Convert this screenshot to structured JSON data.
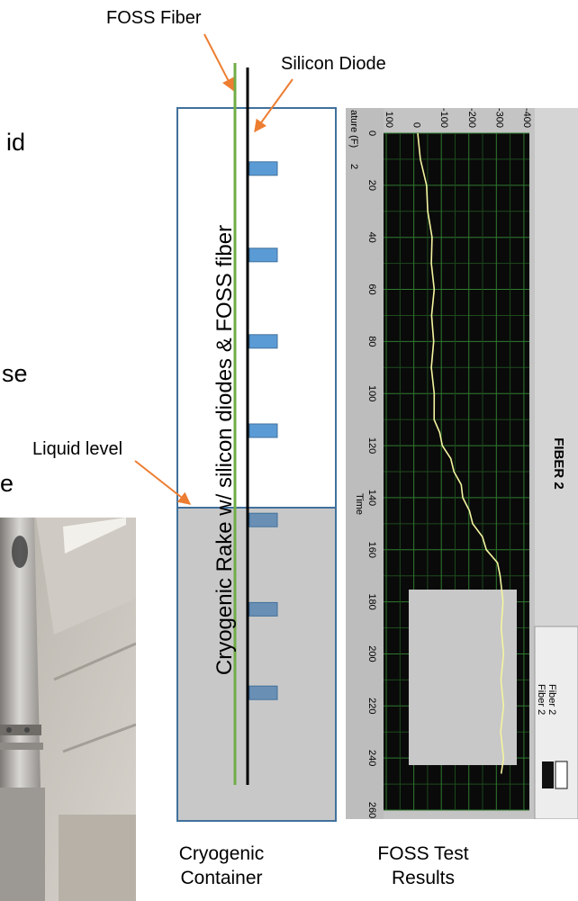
{
  "slide_fragments": {
    "frag1": "id",
    "frag2": "se",
    "frag3": "e"
  },
  "callouts": {
    "foss_fiber": "FOSS Fiber",
    "silicon_diode": "Silicon Diode",
    "liquid_level": "Liquid level"
  },
  "rake_title": "Cryogenic Rake w/ silicon diodes & FOSS fiber",
  "captions": {
    "container_line1": "Cryogenic",
    "container_line2": "Container",
    "results_line1": "FOSS Test",
    "results_line2": "Results"
  },
  "diode_levels_below_top": [
    0.045,
    0.195,
    0.345,
    0.5,
    0.655,
    0.81,
    0.955
  ],
  "liquid_level_fraction": 0.63,
  "colors": {
    "container_border": "#41719c",
    "diode": "#5b9bd5",
    "fiber": "#70ad47",
    "arrow": "#ed7d31",
    "liquid": "#c8c8c8"
  },
  "graph": {
    "title": "FIBER 2",
    "y_label": "ature (F)",
    "y_label_suffix": "2",
    "x_label": "Time",
    "legend": [
      "Fiber 2",
      "Fiber 2"
    ]
  },
  "chart_data": {
    "type": "line",
    "title": "FIBER 2",
    "xlabel": "Time",
    "ylabel": "ature (F)",
    "xlim": [
      0,
      260
    ],
    "ylim": [
      -420,
      110
    ],
    "x_ticks": [
      0,
      20,
      40,
      60,
      80,
      100,
      120,
      140,
      160,
      180,
      200,
      220,
      240,
      260
    ],
    "y_ticks": [
      100,
      0,
      -100,
      -200,
      -300,
      -400
    ],
    "series": [
      {
        "name": "Fiber 2",
        "x": [
          0,
          10,
          20,
          30,
          40,
          50,
          60,
          70,
          80,
          90,
          100,
          110,
          115,
          120,
          125,
          130,
          135,
          140,
          145,
          150,
          155,
          160,
          165,
          170,
          180,
          190,
          200,
          210,
          220,
          230,
          240,
          246
        ],
        "y": [
          -10,
          -28,
          -42,
          -55,
          -62,
          -68,
          -70,
          -69,
          -68,
          -68,
          -70,
          -78,
          -90,
          -108,
          -130,
          -150,
          -168,
          -182,
          -198,
          -218,
          -245,
          -268,
          -300,
          -318,
          -320,
          -322,
          -322,
          -321,
          -322,
          -320,
          -322,
          -322
        ]
      }
    ]
  }
}
